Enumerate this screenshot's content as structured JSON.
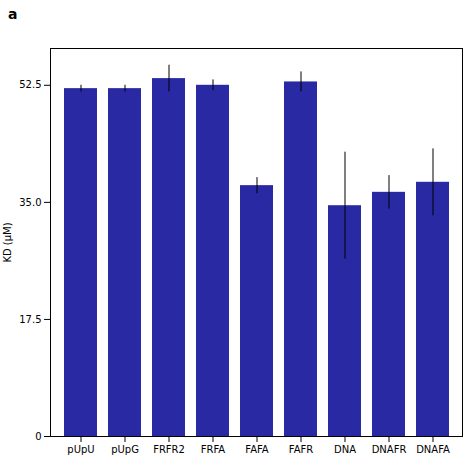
{
  "chart_data": {
    "type": "bar",
    "annotations": [
      "a"
    ],
    "categories": [
      "pUpU",
      "pUpG",
      "FRFR2",
      "FRFA",
      "FAFA",
      "FAFR",
      "DNA",
      "DNAFR",
      "DNAFA"
    ],
    "values": [
      52.0,
      52.0,
      53.5,
      52.5,
      37.5,
      53.0,
      34.5,
      36.5,
      38.0
    ],
    "errors": [
      0.5,
      0.5,
      2.0,
      0.8,
      1.2,
      1.5,
      8.0,
      2.5,
      5.0
    ],
    "color": "#2929A3",
    "ylabel": "KD (μM)",
    "ylim": [
      0,
      58
    ],
    "yticks": [
      0,
      17.5,
      {
        "value": 35,
        "label": "35.0"
      },
      52.5
    ]
  }
}
